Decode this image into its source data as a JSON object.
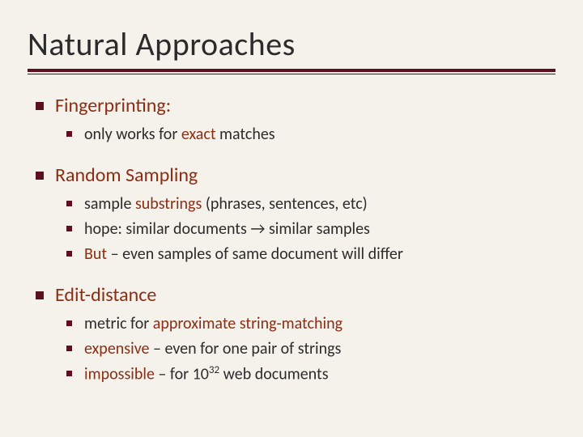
{
  "colors": {
    "background": "#f5f2ec",
    "text": "#2b2b2b",
    "accent": "#8b2e14",
    "rule": "#5a111d",
    "bullet": "#5a111d"
  },
  "typography": {
    "title_fontsize": 40,
    "lvl1_fontsize": 24,
    "lvl2_fontsize": 20,
    "font_family": "Gill Sans"
  },
  "title": "Natural Approaches",
  "items": [
    {
      "label": "Fingerprinting:",
      "sub": [
        {
          "pre": "only works for ",
          "accent": "exact",
          "post": " matches"
        }
      ]
    },
    {
      "label": "Random Sampling",
      "sub": [
        {
          "pre": "sample ",
          "accent": "substrings",
          "post": " (phrases, sentences, etc)"
        },
        {
          "pre": "hope: similar documents ",
          "accent": "→",
          "post": " similar samples"
        },
        {
          "accent": "But",
          "post": " – even samples of same document will differ"
        }
      ]
    },
    {
      "label": "Edit-distance",
      "sub": [
        {
          "pre": "metric for ",
          "accent": "approximate string-matching"
        },
        {
          "accent": "expensive",
          "post": " – even for one pair of strings"
        },
        {
          "accent": "impossible",
          "post": " – for 10",
          "sup": "32",
          "post2": " web documents"
        }
      ]
    }
  ]
}
